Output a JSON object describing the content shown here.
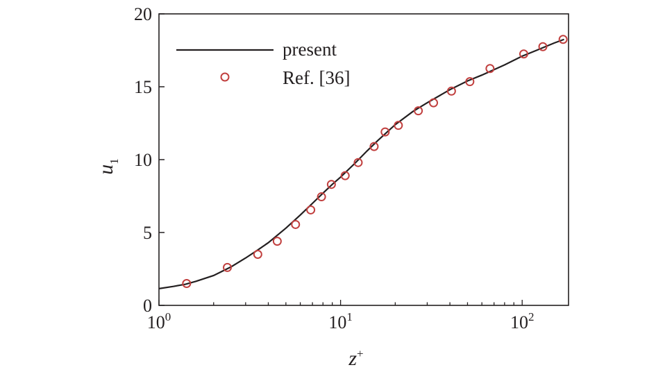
{
  "chart_data": {
    "type": "line",
    "title": "",
    "xlabel": "z",
    "xlabel_sup": "+",
    "ylabel": "u",
    "ylabel_sub": "1",
    "x_scale": "log",
    "xlim": [
      1,
      180
    ],
    "ylim": [
      0,
      20
    ],
    "x_ticks": [
      {
        "value": 1,
        "base": "10",
        "exp": "0"
      },
      {
        "value": 10,
        "base": "10",
        "exp": "1"
      },
      {
        "value": 100,
        "base": "10",
        "exp": "2"
      }
    ],
    "y_ticks": [
      {
        "value": 0,
        "label": "0"
      },
      {
        "value": 5,
        "label": "5"
      },
      {
        "value": 10,
        "label": "10"
      },
      {
        "value": 15,
        "label": "15"
      },
      {
        "value": 20,
        "label": "20"
      }
    ],
    "grid": false,
    "legend_position": "top-left",
    "series": [
      {
        "name": "present",
        "style": "line",
        "color": "#231f20",
        "x": [
          1.0,
          1.2,
          1.4,
          1.6,
          2.0,
          2.5,
          3.0,
          3.5,
          4.0,
          5.0,
          6.0,
          7.0,
          8.0,
          9.0,
          10.0,
          12.0,
          14.0,
          16.0,
          20.0,
          25.0,
          30.0,
          40.0,
          50.0,
          60.0,
          80.0,
          100.0,
          120.0,
          150.0,
          170.0
        ],
        "y": [
          1.15,
          1.3,
          1.45,
          1.65,
          2.05,
          2.65,
          3.25,
          3.8,
          4.3,
          5.3,
          6.2,
          7.0,
          7.7,
          8.3,
          8.8,
          9.75,
          10.6,
          11.3,
          12.4,
          13.3,
          13.9,
          14.8,
          15.4,
          15.8,
          16.5,
          17.1,
          17.5,
          18.0,
          18.25
        ]
      },
      {
        "name": "Ref. [36]",
        "style": "markers",
        "color": "#c1403f",
        "x": [
          1.42,
          2.38,
          3.5,
          4.48,
          5.65,
          6.85,
          7.85,
          8.9,
          10.6,
          12.5,
          15.3,
          17.6,
          20.8,
          26.8,
          32.5,
          40.8,
          51.5,
          66.5,
          102.0,
          130.0,
          168.0
        ],
        "y": [
          1.5,
          2.6,
          3.5,
          4.4,
          5.55,
          6.55,
          7.45,
          8.3,
          8.9,
          9.8,
          10.9,
          11.9,
          12.35,
          13.35,
          13.9,
          14.7,
          15.35,
          16.25,
          17.25,
          17.75,
          18.25
        ]
      }
    ]
  }
}
